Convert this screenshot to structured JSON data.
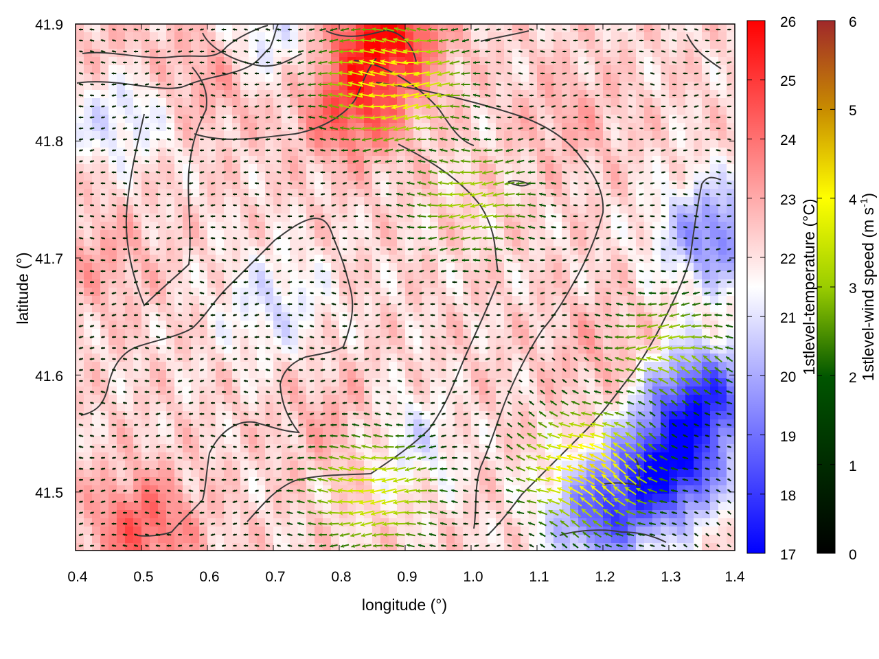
{
  "chart_data": {
    "type": "heatmap",
    "xlabel": "longitude (°)",
    "ylabel": "latitude (°)",
    "xlim": [
      0.4,
      1.4
    ],
    "ylim": [
      41.45,
      41.9
    ],
    "xticks": [
      "0.4",
      "0.5",
      "0.6",
      "0.7",
      "0.8",
      "0.9",
      "1.0",
      "1.1",
      "1.2",
      "1.3",
      "1.4"
    ],
    "yticks": [
      "41.5",
      "41.6",
      "41.7",
      "41.8",
      "41.9"
    ],
    "colorbars": [
      {
        "label": "1stlevel-temperature (°C)",
        "range": [
          17,
          26
        ],
        "ticks": [
          "17",
          "18",
          "19",
          "20",
          "21",
          "22",
          "23",
          "24",
          "25",
          "26"
        ],
        "colors": [
          "#0000ff",
          "#ffffff",
          "#ff0000"
        ]
      },
      {
        "label_main": "1stlevel-wind speed (m s",
        "label_sup": "-1",
        "label_end": ")",
        "range": [
          0,
          6
        ],
        "ticks": [
          "0",
          "1",
          "2",
          "3",
          "4",
          "5",
          "6"
        ],
        "colors": [
          "#000000",
          "#005500",
          "#9acd00",
          "#ffff00",
          "#c88c00",
          "#a0282a"
        ]
      }
    ],
    "temperature_field": {
      "background": 22.2,
      "warm_spots": [
        {
          "lon": 0.87,
          "lat": 41.89,
          "value": 25.6
        },
        {
          "lon": 0.82,
          "lat": 41.83,
          "value": 24.6
        },
        {
          "lon": 0.62,
          "lat": 41.86,
          "value": 23.6
        },
        {
          "lon": 0.45,
          "lat": 41.86,
          "value": 23.2
        },
        {
          "lon": 0.5,
          "lat": 41.47,
          "value": 24.3
        },
        {
          "lon": 0.44,
          "lat": 41.7,
          "value": 23.0
        },
        {
          "lon": 0.8,
          "lat": 41.56,
          "value": 23.0
        },
        {
          "lon": 0.95,
          "lat": 41.56,
          "value": 23.0
        },
        {
          "lon": 1.15,
          "lat": 41.82,
          "value": 22.9
        },
        {
          "lon": 1.2,
          "lat": 41.62,
          "value": 22.9
        }
      ],
      "cool_spots": [
        {
          "lon": 1.3,
          "lat": 41.52,
          "value": 17.5
        },
        {
          "lon": 1.35,
          "lat": 41.58,
          "value": 18.0
        },
        {
          "lon": 1.2,
          "lat": 41.48,
          "value": 18.8
        },
        {
          "lon": 1.37,
          "lat": 41.72,
          "value": 19.3
        },
        {
          "lon": 0.46,
          "lat": 41.83,
          "value": 20.4
        },
        {
          "lon": 0.68,
          "lat": 41.88,
          "value": 20.6
        },
        {
          "lon": 0.92,
          "lat": 41.55,
          "value": 20.4
        },
        {
          "lon": 0.7,
          "lat": 41.66,
          "value": 21.0
        }
      ]
    },
    "wind_field": {
      "direction": "westward",
      "strong_regions": [
        {
          "lon": 0.88,
          "lat": 41.85,
          "speed": 4.0
        },
        {
          "lon": 1.18,
          "lat": 41.52,
          "speed": 4.0
        },
        {
          "lon": 1.0,
          "lat": 41.75,
          "speed": 2.6
        },
        {
          "lon": 1.3,
          "lat": 41.62,
          "speed": 2.6
        },
        {
          "lon": 0.85,
          "lat": 41.5,
          "speed": 3.2
        }
      ]
    },
    "contour_lines": "dark grey outline traces overlaid on the field"
  }
}
